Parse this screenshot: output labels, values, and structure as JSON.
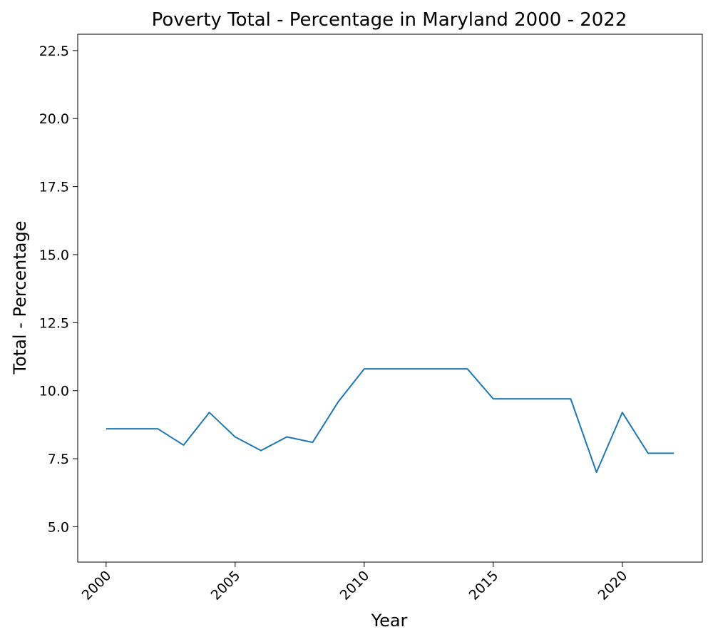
{
  "chart_data": {
    "type": "line",
    "title": "Poverty Total - Percentage in Maryland 2000 - 2022",
    "xlabel": "Year",
    "ylabel": "Total - Percentage",
    "xlim": [
      1998.9,
      2023.1
    ],
    "ylim": [
      3.7,
      23.1
    ],
    "x_ticks": [
      2000,
      2005,
      2010,
      2015,
      2020
    ],
    "y_ticks": [
      5.0,
      7.5,
      10.0,
      12.5,
      15.0,
      17.5,
      20.0,
      22.5
    ],
    "line_color": "#1f77b4",
    "grid": false,
    "legend": "none",
    "series": [
      {
        "x": [
          2000,
          2001,
          2002,
          2003,
          2004,
          2005,
          2006,
          2007,
          2008,
          2009,
          2010,
          2011,
          2012,
          2013,
          2014,
          2015,
          2016,
          2017,
          2018,
          2019,
          2020,
          2021,
          2022
        ],
        "values": [
          8.6,
          8.6,
          8.6,
          8.0,
          9.2,
          8.3,
          7.8,
          8.3,
          8.1,
          9.6,
          10.8,
          10.8,
          10.8,
          10.8,
          10.8,
          9.7,
          9.7,
          9.7,
          9.7,
          7.0,
          9.2,
          7.7,
          7.7
        ]
      }
    ]
  }
}
